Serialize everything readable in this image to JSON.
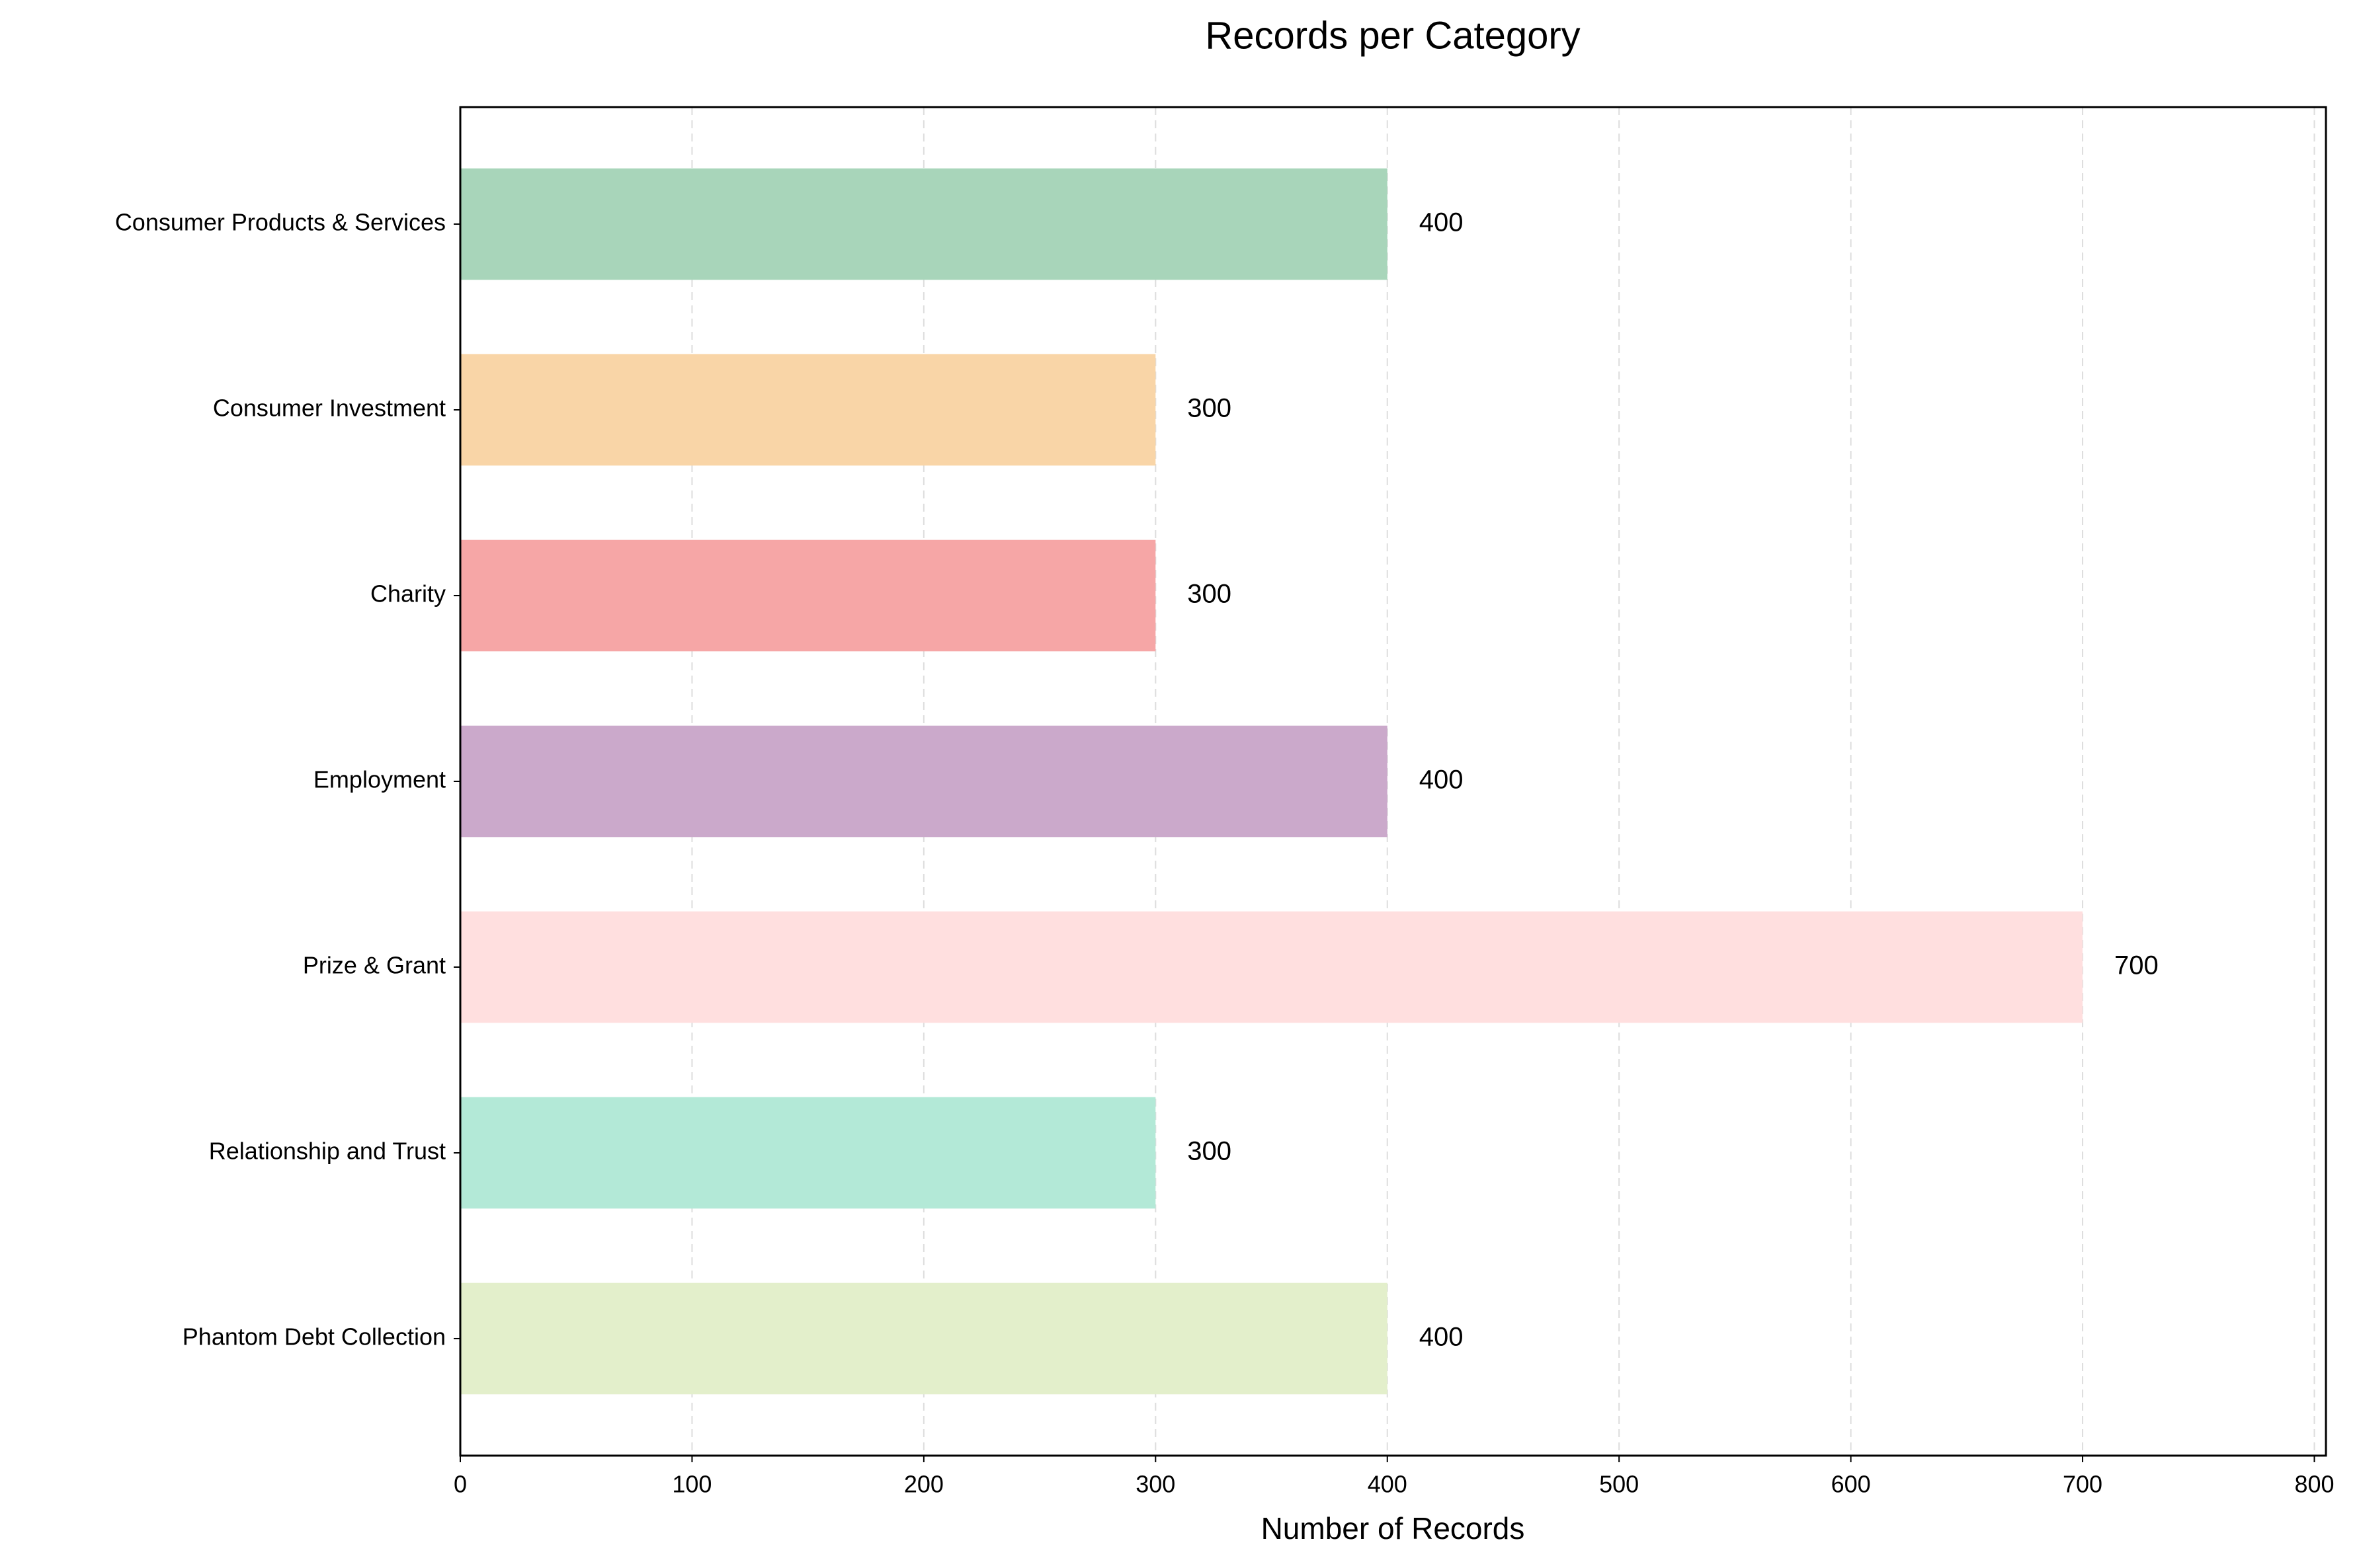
{
  "chart_data": {
    "type": "barh",
    "title": "Records per Category",
    "x_label": "Number of Records",
    "categories": [
      "Consumer Products & Services",
      "Consumer Investment",
      "Charity",
      "Employment",
      "Prize & Grant",
      "Relationship and Trust",
      "Phantom Debt Collection"
    ],
    "values": [
      400,
      300,
      300,
      400,
      700,
      300,
      400
    ],
    "colors": [
      "#a8d5ba",
      "#f9d5a7",
      "#f6a6a6",
      "#cba9cb",
      "#ffdfdf",
      "#b3e9d7",
      "#e3efcb"
    ],
    "xlim": [
      0,
      805
    ],
    "xticks": [
      0,
      100,
      200,
      300,
      400,
      500,
      600,
      700,
      800
    ],
    "grid": true
  }
}
